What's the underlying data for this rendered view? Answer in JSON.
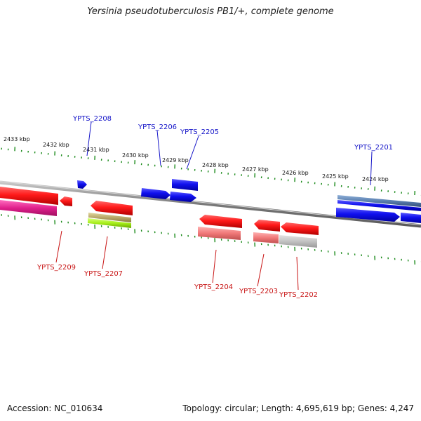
{
  "title": "Yersinia pseudotuberculosis PB1/+, complete genome",
  "footer": {
    "accession": "Accession: NC_010634",
    "stats": "Topology: circular; Length: 4,695,619 bp; Genes: 4,247"
  },
  "colors": {
    "background": "#ffffff",
    "backbone": "#8a8a8a",
    "tick": "#1a8a1a",
    "forward_strand": "#1414e6",
    "reverse_strand": "#e61414",
    "forward_label": "#1414c8",
    "reverse_label": "#c81414"
  },
  "scale_labels": [
    "2433 kbp",
    "2432 kbp",
    "2431 kbp",
    "2430 kbp",
    "2429 kbp",
    "2428 kbp",
    "2427 kbp",
    "2426 kbp",
    "2425 kbp",
    "2424 kbp"
  ],
  "gene_labels": {
    "forward": [
      "YPTS_2208",
      "YPTS_2206",
      "YPTS_2205",
      "YPTS_2201"
    ],
    "reverse": [
      "YPTS_2209",
      "YPTS_2207",
      "YPTS_2204",
      "YPTS_2203",
      "YPTS_2202"
    ]
  }
}
